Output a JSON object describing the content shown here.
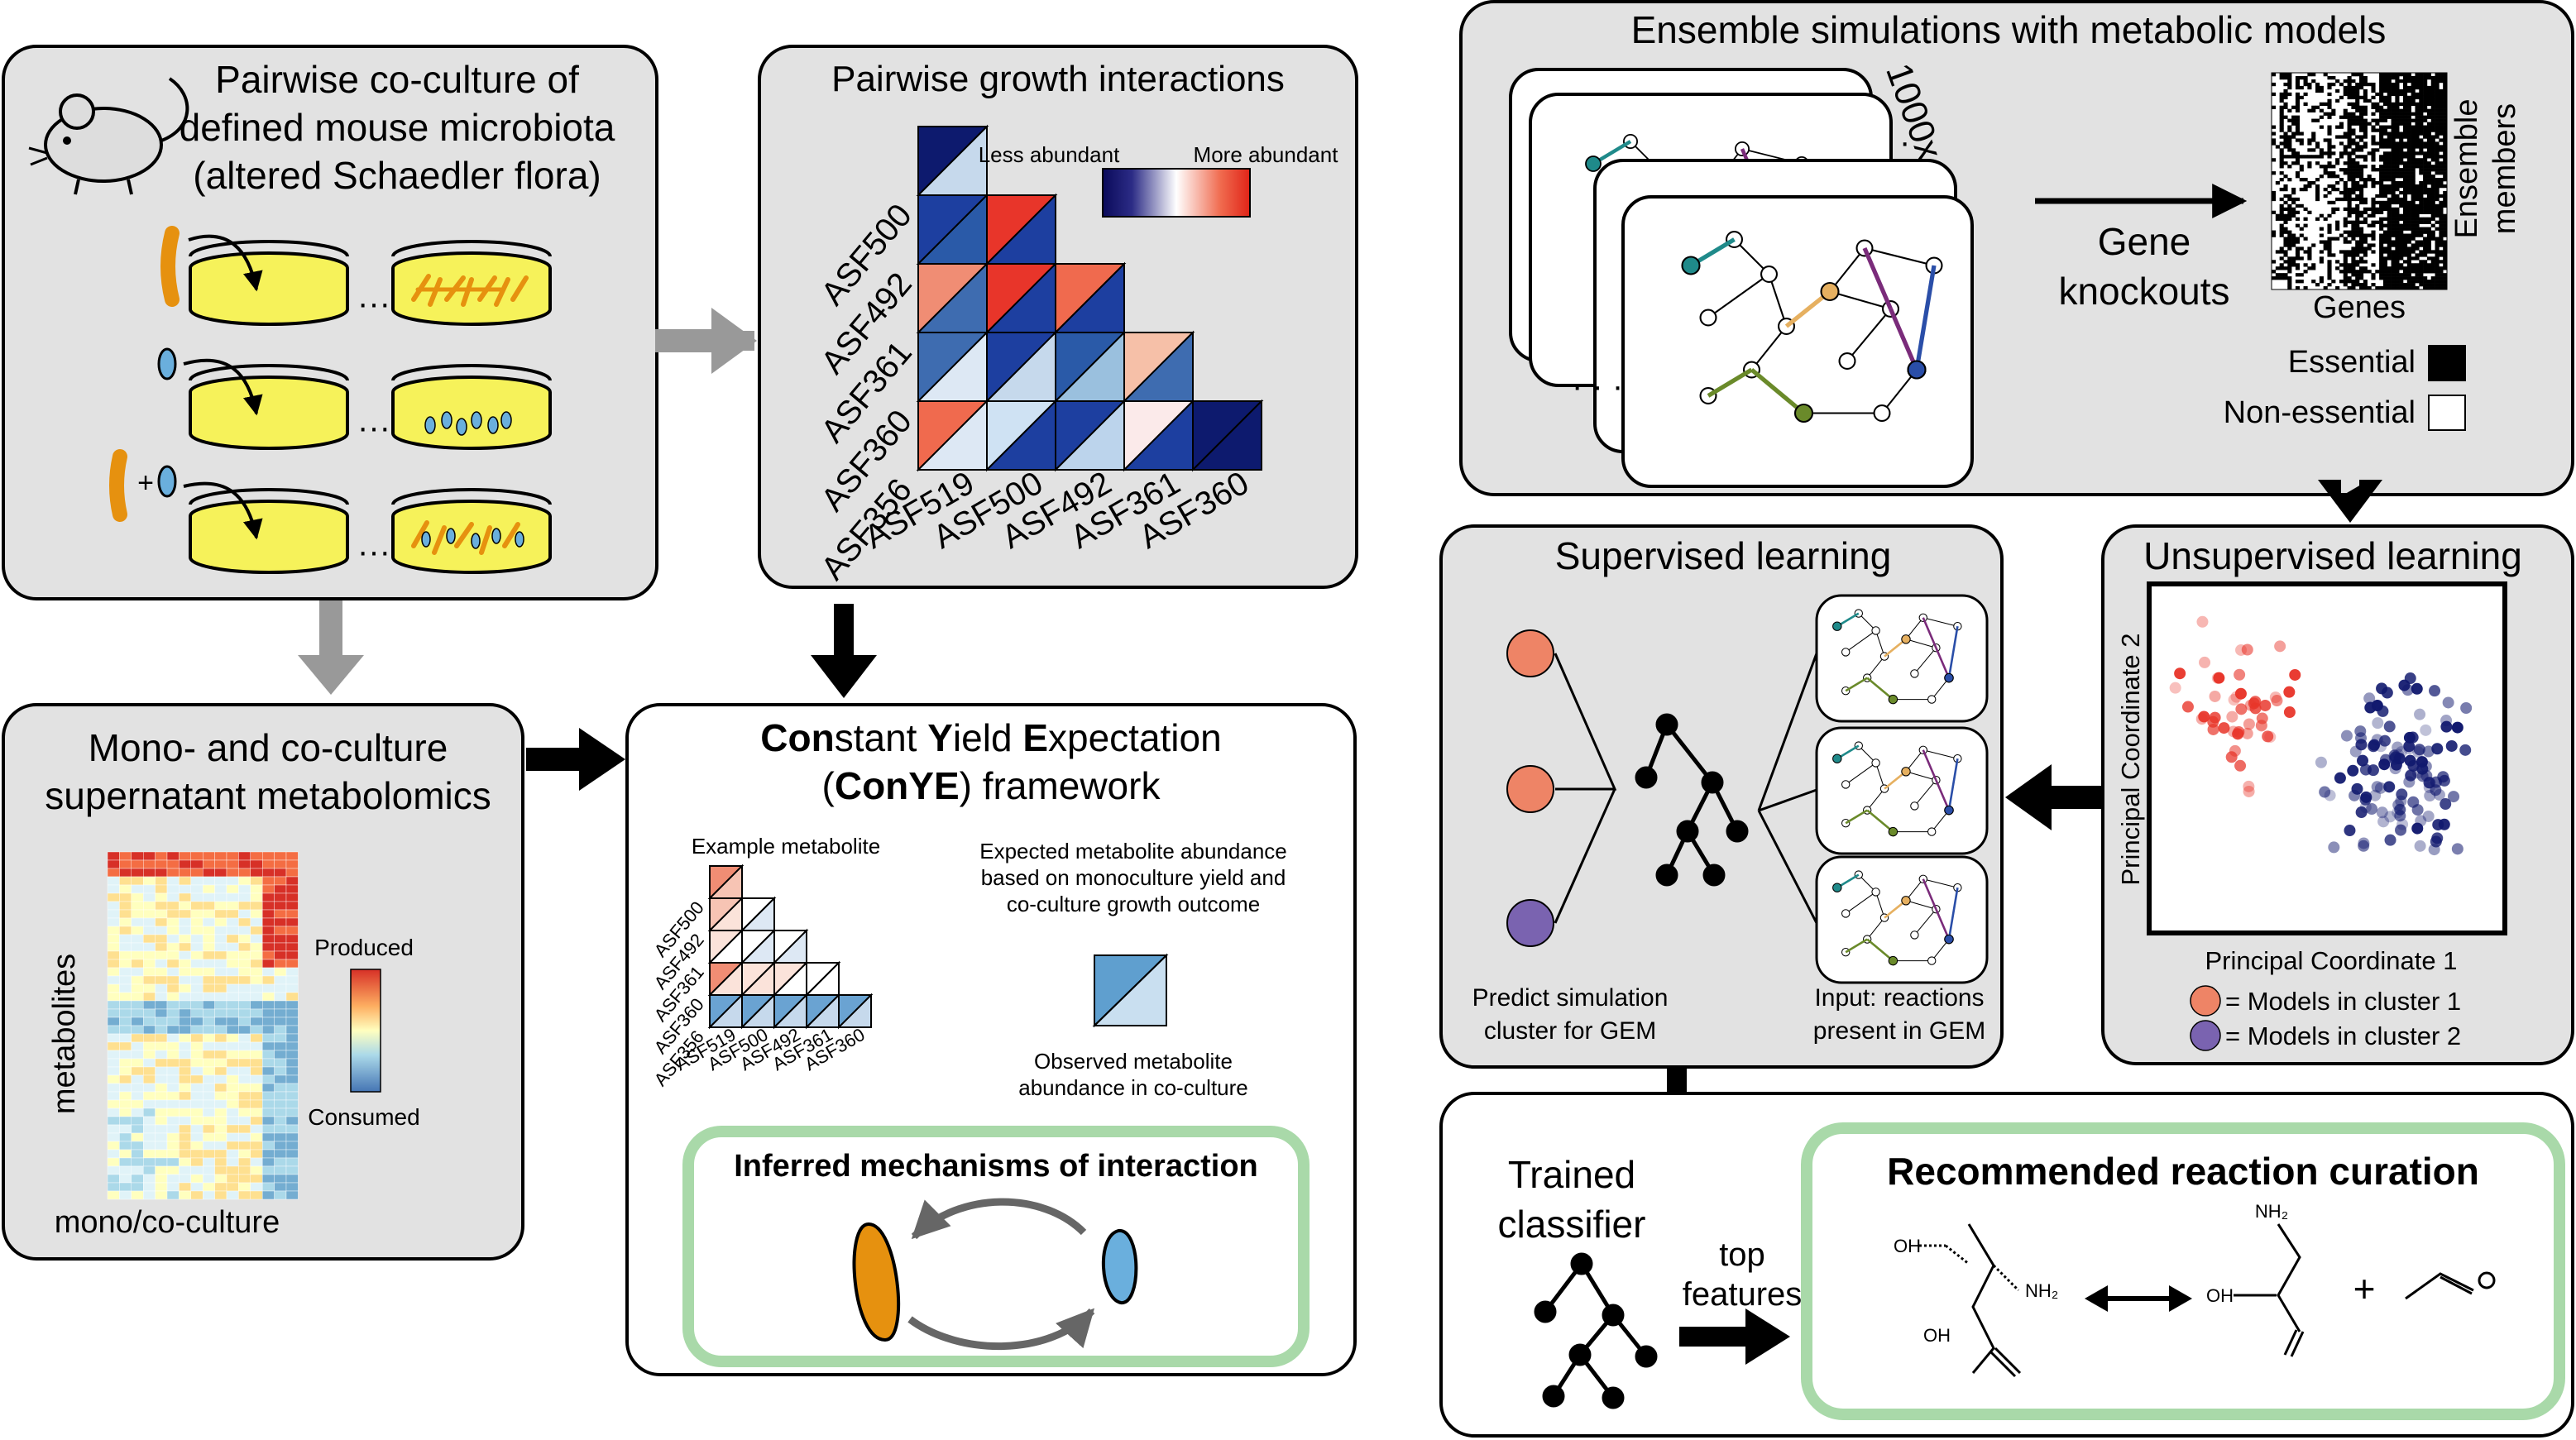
{
  "panels": {
    "coculture": {
      "title_lines": [
        "Pairwise co-culture of",
        "defined mouse microbiota",
        "(altered Schaedler flora)"
      ],
      "plus": "+",
      "dots": "···"
    },
    "interactions": {
      "title": "Pairwise growth interactions",
      "legend_less": "Less abundant",
      "legend_more": "More abundant",
      "row_labels": [
        "ASF500",
        "ASF492",
        "ASF361",
        "ASF360",
        "ASF356"
      ],
      "col_labels": [
        "ASF519",
        "ASF500",
        "ASF492",
        "ASF361",
        "ASF360"
      ]
    },
    "metabolomics": {
      "title_lines": [
        "Mono- and co-culture",
        "supernatant metabolomics"
      ],
      "ylabel": "metabolites",
      "xlabel": "mono/co-culture",
      "legend_top": "Produced",
      "legend_bottom": "Consumed"
    },
    "conye": {
      "title_line1_parts": [
        "Con",
        "stant ",
        "Y",
        "ield ",
        "E",
        "xpectation"
      ],
      "title_line2_parts": [
        "(",
        "ConYE",
        ") framework"
      ],
      "example_label": "Example metabolite",
      "row_labels": [
        "ASF500",
        "ASF492",
        "ASF361",
        "ASF360",
        "ASF356"
      ],
      "col_labels": [
        "ASF519",
        "ASF500",
        "ASF492",
        "ASF361",
        "ASF360"
      ],
      "expected_lines": [
        "Expected metabolite abundance",
        "based on monoculture yield and",
        "co-culture growth outcome"
      ],
      "observed_lines": [
        "Observed metabolite",
        "abundance in co-culture"
      ],
      "inferred_title": "Inferred mechanisms of interaction"
    },
    "ensemble": {
      "title": "Ensemble simulations with metabolic models",
      "count": "1000x",
      "arrow_label_lines": [
        "Gene",
        "knockouts"
      ],
      "matrix_xlabel": "Genes",
      "matrix_ylabel_lines": [
        "Ensemble",
        "members"
      ],
      "legend_essential": "Essential",
      "legend_nonessential": "Non-essential"
    },
    "supervised": {
      "title": "Supervised learning",
      "predict_lines": [
        "Predict simulation",
        "cluster for GEM"
      ],
      "input_lines": [
        "Input: reactions",
        "present in GEM"
      ]
    },
    "unsupervised": {
      "title": "Unsupervised learning",
      "xlabel": "Principal Coordinate 1",
      "ylabel": "Principal Coordinate 2",
      "legend_cluster1": "= Models in cluster 1",
      "legend_cluster2": "= Models in cluster 2"
    },
    "curation": {
      "trained_lines": [
        "Trained",
        "classifier"
      ],
      "features_lines": [
        "top",
        "features"
      ],
      "title": "Recommended reaction curation",
      "oh": "OH",
      "nh2": "NH₂",
      "plus": "+"
    }
  },
  "colors": {
    "panel_bg": "#e2e2e2",
    "orange": "#e6910f",
    "blue": "#6aafdd",
    "yellow": "#f6f25a",
    "green_frame": "#a9d9a9",
    "salmon": "#ee8466",
    "purple": "#7a63b0",
    "navy": "#11196e",
    "red": "#e8352a"
  }
}
